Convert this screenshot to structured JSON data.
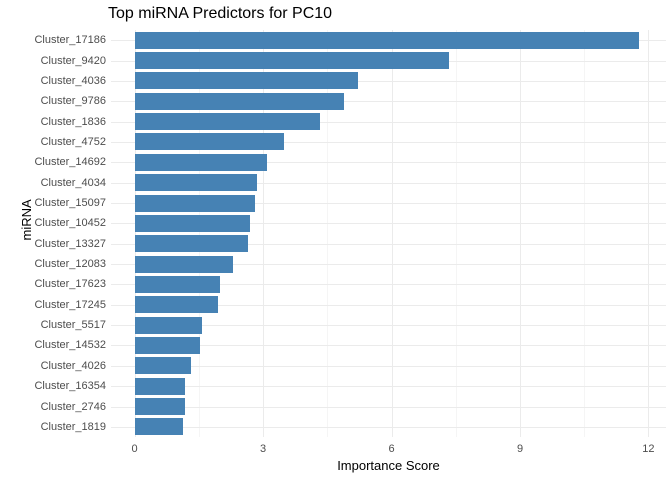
{
  "title": "Top miRNA Predictors for PC10",
  "chart_data": {
    "type": "bar",
    "orientation": "horizontal",
    "title": "Top miRNA Predictors for PC10",
    "xlabel": "Importance Score",
    "ylabel": "miRNA",
    "categories": [
      "Cluster_17186",
      "Cluster_9420",
      "Cluster_4036",
      "Cluster_9786",
      "Cluster_1836",
      "Cluster_4752",
      "Cluster_14692",
      "Cluster_4034",
      "Cluster_15097",
      "Cluster_10452",
      "Cluster_13327",
      "Cluster_12083",
      "Cluster_17623",
      "Cluster_17245",
      "Cluster_5517",
      "Cluster_14532",
      "Cluster_4026",
      "Cluster_16354",
      "Cluster_2746",
      "Cluster_1819"
    ],
    "values": [
      11.79,
      7.34,
      5.22,
      4.89,
      4.33,
      3.49,
      3.09,
      2.86,
      2.82,
      2.69,
      2.65,
      2.3,
      1.99,
      1.95,
      1.57,
      1.53,
      1.31,
      1.18,
      1.17,
      1.12
    ],
    "xticks": [
      0,
      3,
      6,
      9,
      12
    ],
    "xtick_labels": [
      "0",
      "3",
      "6",
      "9",
      "12"
    ],
    "minor_xticks": [
      1.5,
      4.5,
      7.5,
      10.5
    ],
    "xlim": [
      -0.55,
      12.41
    ],
    "grid": true,
    "legend": "none",
    "colors": {
      "bar_fill": "#4682B4",
      "grid_major": "#EBEBEB",
      "grid_minor": "#F5F5F5",
      "tick_text": "#4D4D4D",
      "title_text": "#000000",
      "background": "#FFFFFF"
    }
  }
}
